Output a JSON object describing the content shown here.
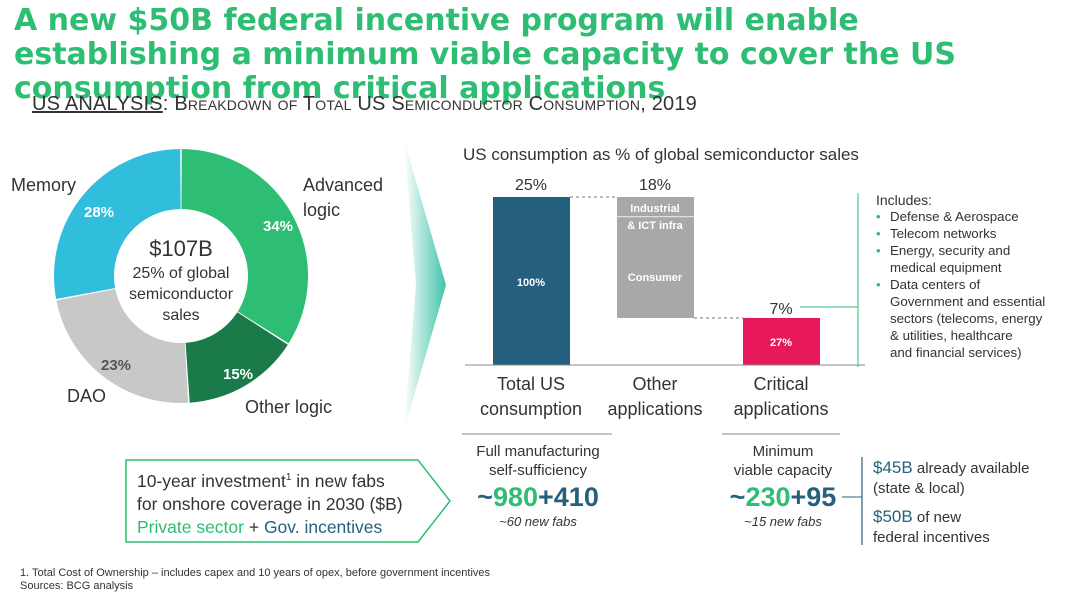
{
  "title": "A new $50B federal incentive program will enable establishing a minimum viable capacity to cover the US consumption from critical applications",
  "subtitle": {
    "prefix": "US ANALYSIS",
    "separator": ":",
    "text": "Breakdown of Total US Semiconductor Consumption, 2019"
  },
  "colors": {
    "green": "#2dbd73",
    "dark_green": "#1a7a4a",
    "light_blue": "#31bedc",
    "gray": "#c8c8c8",
    "navy": "#25617f",
    "mid_gray": "#a8a8a8",
    "pink": "#e8195a"
  },
  "chart_data": [
    {
      "type": "pie",
      "variant": "donut",
      "center": {
        "value": "$107B",
        "line1": "25% of global",
        "line2": "semiconductor",
        "line3": "sales"
      },
      "slices": [
        {
          "name": "Advanced logic",
          "name_line1": "Advanced",
          "name_line2": "logic",
          "value": 34,
          "label": "34%",
          "color": "#2dbd73"
        },
        {
          "name": "Other logic",
          "value": 15,
          "label": "15%",
          "color": "#1a7a4a"
        },
        {
          "name": "DAO",
          "value": 23,
          "label": "23%",
          "color": "#c8c8c8"
        },
        {
          "name": "Memory",
          "value": 28,
          "label": "28%",
          "color": "#31bedc"
        }
      ]
    },
    {
      "type": "bar",
      "variant": "waterfall",
      "title": "US consumption as % of global semiconductor sales",
      "ylim": [
        0,
        25
      ],
      "categories": [
        {
          "line1": "Total US",
          "line2": "consumption"
        },
        {
          "line1": "Other",
          "line2": "applications"
        },
        {
          "line1": "Critical",
          "line2": "applications"
        }
      ],
      "bars": [
        {
          "total_label": "25%",
          "segments": [
            {
              "label": "100%",
              "from": 0,
              "to": 25,
              "color": "#25617f"
            }
          ]
        },
        {
          "total_label": "18%",
          "segments": [
            {
              "label_line1": "Industrial",
              "label_line2": "& ICT infra",
              "from": 22,
              "to": 25,
              "color": "#a8a8a8"
            },
            {
              "label": "Consumer",
              "from": 7,
              "to": 22,
              "color": "#a8a8a8"
            }
          ]
        },
        {
          "total_label": "7%",
          "segments": [
            {
              "label": "27%",
              "from": 0,
              "to": 7,
              "color": "#e8195a"
            }
          ]
        }
      ]
    }
  ],
  "includes": {
    "title": "Includes:",
    "items": [
      {
        "line1": "Defense & Aerospace"
      },
      {
        "line1": "Telecom networks"
      },
      {
        "line1": "Energy, security and",
        "line2": "medical equipment"
      },
      {
        "line1": "Data centers of",
        "line2": "Government and essential",
        "line3": "sectors (telecoms, energy",
        "line4": "& utilities, healthcare",
        "line5": "and financial services)"
      }
    ]
  },
  "investment_box": {
    "line1_pre": "10-year investment",
    "line1_sup": "1",
    "line1_post": " in new fabs",
    "line2": "for onshore coverage in 2030 ($B)",
    "line3_a": "Private sector",
    "line3_plus": " + ",
    "line3_b": "Gov. incentives"
  },
  "self_sufficiency": {
    "line1": "Full manufacturing",
    "line2": "self-sufficiency",
    "tilde": "~",
    "private": "980",
    "plus": "+",
    "gov": "410",
    "fabs": "~60 new fabs"
  },
  "minimum_capacity": {
    "line1": "Minimum",
    "line2": "viable capacity",
    "tilde": "~",
    "private": "230",
    "plus": "+",
    "gov": "95",
    "fabs": "~15 new fabs"
  },
  "incentives": {
    "a_amount": "$45B",
    "a_text1": " already available",
    "a_text2": "(state & local)",
    "b_amount": "$50B",
    "b_text1": " of new",
    "b_text2": "federal incentives"
  },
  "footnotes": {
    "line1": "1. Total Cost of Ownership – includes capex and 10 years of opex, before government incentives",
    "line2": "Sources: BCG analysis"
  }
}
